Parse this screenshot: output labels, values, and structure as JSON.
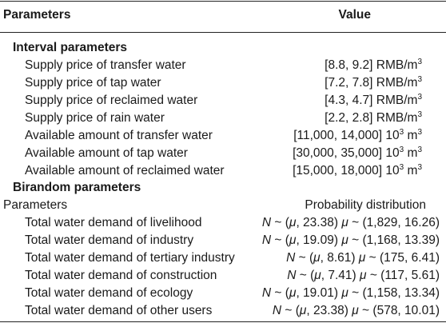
{
  "table": {
    "header": {
      "col1": "Parameters",
      "col2": "Value"
    },
    "interval": {
      "title": "Interval parameters",
      "rows": [
        {
          "label": "Supply price of transfer water",
          "value": "[8.8, 9.2] RMB/m",
          "sup": "3"
        },
        {
          "label": "Supply price of tap water",
          "value": "[7.2, 7.8] RMB/m",
          "sup": "3"
        },
        {
          "label": "Supply price of reclaimed water",
          "value": "[4.3, 4.7] RMB/m",
          "sup": "3"
        },
        {
          "label": "Supply price of rain water",
          "value": "[2.2, 2.8] RMB/m",
          "sup": "3"
        },
        {
          "label": "Available amount of transfer water",
          "value": "[11,000, 14,000] 10",
          "sup": "3",
          "unit": " m",
          "sup2": "3"
        },
        {
          "label": "Available amount of tap water",
          "value": "[30,000, 35,000] 10",
          "sup": "3",
          "unit": " m",
          "sup2": "3"
        },
        {
          "label": "Available amount of reclaimed water",
          "value": "[15,000, 18,000] 10",
          "sup": "3",
          "unit": " m",
          "sup2": "3"
        }
      ]
    },
    "birandom": {
      "title": "Birandom parameters",
      "subheader": {
        "col1": "Parameters",
        "col2": "Probability distribution"
      },
      "rows": [
        {
          "label": "Total water demand of livelihood",
          "n": "N",
          "mid": " ~ (",
          "mu": "μ",
          "params": ", 23.38) ",
          "mu2": "μ",
          "dist": " ~ (1,829, 16.26)"
        },
        {
          "label": "Total water demand of industry",
          "n": "N",
          "mid": " ~ (",
          "mu": "μ",
          "params": ", 19.09) ",
          "mu2": "μ",
          "dist": " ~ (1,168, 13.39)"
        },
        {
          "label": "Total water demand of tertiary industry",
          "n": "N",
          "mid": " ~ (",
          "mu": "μ",
          "params": ", 8.61) ",
          "mu2": "μ",
          "dist": " ~ (175, 6.41)"
        },
        {
          "label": "Total water demand of construction",
          "n": "N",
          "mid": " ~ (",
          "mu": "μ",
          "params": ", 7.41) ",
          "mu2": "μ",
          "dist": " ~ (117, 5.61)"
        },
        {
          "label": "Total water demand of ecology",
          "n": "N",
          "mid": " ~ (",
          "mu": "μ",
          "params": ", 19.01) ",
          "mu2": "μ",
          "dist": " ~ (1,158, 13.34)"
        },
        {
          "label": "Total water demand of other users",
          "n": "N",
          "mid": " ~ (",
          "mu": "μ",
          "params": ", 23.38) ",
          "mu2": "μ",
          "dist": " ~ (578, 10.01)"
        }
      ]
    }
  }
}
